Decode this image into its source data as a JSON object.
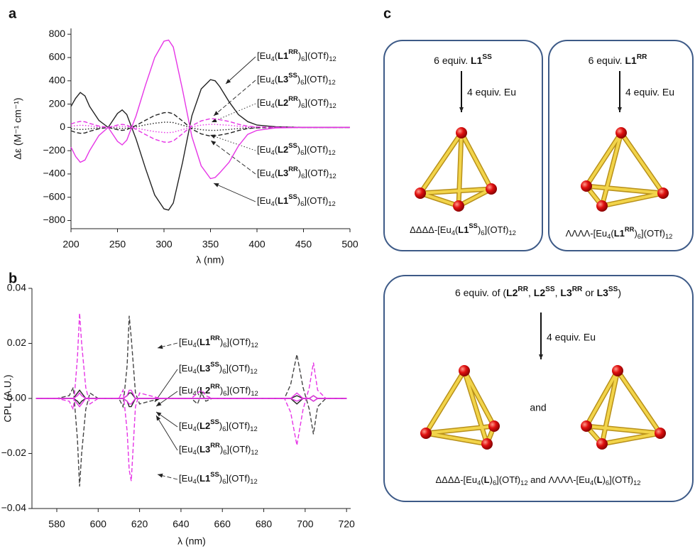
{
  "panel_labels": [
    "a",
    "b",
    "c"
  ],
  "chart_data": [
    {
      "type": "line",
      "x_label": "λ (nm)",
      "y_label": "Δε (M⁻¹ cm⁻¹)",
      "x": [
        200,
        205,
        210,
        215,
        220,
        230,
        240,
        250,
        255,
        260,
        270,
        280,
        290,
        300,
        305,
        310,
        320,
        330,
        340,
        350,
        355,
        360,
        370,
        380,
        390,
        400,
        420,
        450,
        500
      ],
      "xlim": [
        200,
        500
      ],
      "xticks": [
        200,
        250,
        300,
        350,
        400,
        450,
        500
      ],
      "ylim": [
        -870,
        850
      ],
      "yticks": [
        {
          "value": -800,
          "label": "−800"
        },
        {
          "value": -600,
          "label": "−600"
        },
        {
          "value": -400,
          "label": "−400"
        },
        {
          "value": -200,
          "label": "−200"
        },
        0,
        200,
        400,
        600,
        800
      ],
      "grid": false,
      "series": [
        {
          "name": "[Eu4(L1RR)6](OTf)12",
          "color": "#222222",
          "style": "solid",
          "values": [
            180,
            250,
            300,
            270,
            180,
            60,
            0,
            120,
            150,
            110,
            -100,
            -350,
            -580,
            -700,
            -710,
            -650,
            -300,
            100,
            330,
            410,
            400,
            350,
            220,
            110,
            50,
            20,
            5,
            0,
            0
          ]
        },
        {
          "name": "[Eu4(L3SS)6](OTf)12",
          "color": "#222222",
          "style": "dashed",
          "values": [
            -29,
            -43,
            -51,
            -48,
            -34,
            -12,
            0,
            -20,
            -26,
            -19,
            17,
            61,
            102,
            126,
            128,
            117,
            54,
            -14,
            -56,
            -75,
            -73,
            -66,
            -51,
            -27,
            -10,
            -4,
            -1,
            0,
            0
          ]
        },
        {
          "name": "[Eu4(L2RR)6](OTf)12",
          "color": "#222222",
          "style": "dotted",
          "values": [
            -10,
            -15,
            -18,
            -17,
            -12,
            -4,
            0,
            -7,
            -9,
            -7,
            6,
            22,
            36,
            44,
            45,
            41,
            19,
            -5,
            -20,
            -26,
            -26,
            -23,
            -18,
            -10,
            -4,
            -2,
            0,
            0,
            0
          ]
        },
        {
          "name": "[Eu4(L2SS)6](OTf)12",
          "color": "#e635e6",
          "style": "dotted",
          "values": [
            10,
            15,
            18,
            17,
            12,
            4,
            0,
            7,
            9,
            7,
            -6,
            -22,
            -36,
            -44,
            -45,
            -41,
            -19,
            5,
            20,
            26,
            26,
            23,
            18,
            10,
            4,
            2,
            0,
            0,
            0
          ]
        },
        {
          "name": "[Eu4(L3RR)6](OTf)12",
          "color": "#e635e6",
          "style": "dashed",
          "values": [
            29,
            43,
            51,
            48,
            34,
            12,
            0,
            20,
            26,
            19,
            -17,
            -61,
            -102,
            -126,
            -128,
            -117,
            -54,
            14,
            56,
            75,
            73,
            66,
            51,
            27,
            10,
            4,
            1,
            0,
            0
          ]
        },
        {
          "name": "[Eu4(L1SS)6](OTf)12",
          "color": "#e635e6",
          "style": "solid",
          "values": [
            -170,
            -250,
            -300,
            -280,
            -200,
            -70,
            0,
            -120,
            -150,
            -110,
            100,
            360,
            600,
            740,
            750,
            690,
            320,
            -80,
            -330,
            -440,
            -430,
            -390,
            -300,
            -160,
            -60,
            -25,
            -5,
            0,
            0
          ]
        }
      ]
    },
    {
      "type": "line",
      "x_label": "λ (nm)",
      "y_label": "CPL (A.U.)",
      "x": [
        570,
        580,
        586,
        588,
        590,
        591,
        592,
        594,
        596,
        600,
        610,
        612,
        614,
        615,
        616,
        618,
        620,
        630,
        645,
        648,
        650,
        652,
        655,
        670,
        690,
        693,
        696,
        699,
        702,
        704,
        706,
        710,
        720
      ],
      "xlim": [
        568,
        722
      ],
      "xticks": [
        580,
        600,
        620,
        640,
        660,
        680,
        700,
        720
      ],
      "ylim": [
        -0.04,
        0.04
      ],
      "yticks": [
        {
          "value": -0.04,
          "label": "−0.04"
        },
        {
          "value": -0.02,
          "label": "−0.02"
        },
        {
          "value": 0,
          "label": "0.00"
        },
        0.02,
        0.04
      ],
      "grid": false,
      "series": [
        {
          "name": "[Eu4(L1RR)6](OTf)12",
          "color": "#444444",
          "style": "dashed",
          "values": [
            0,
            0,
            0.001,
            0.004,
            -0.015,
            -0.032,
            -0.02,
            -0.004,
            0.002,
            0,
            0,
            -0.003,
            0.012,
            0.03,
            0.022,
            0.002,
            -0.002,
            0,
            0,
            -0.002,
            0.002,
            -0.001,
            0,
            0,
            0,
            0.005,
            0.016,
            0.004,
            -0.004,
            -0.013,
            -0.003,
            0,
            0
          ]
        },
        {
          "name": "[Eu4(L3SS)6](OTf)12",
          "color": "#222222",
          "style": "solid",
          "values": [
            0,
            0,
            0,
            0,
            0.002,
            0.003,
            0.002,
            0,
            0,
            0,
            0,
            0,
            -0.001,
            -0.003,
            -0.003,
            0,
            0,
            0,
            0,
            0,
            0,
            0,
            0,
            0,
            0,
            0,
            -0.002,
            0,
            0,
            0.001,
            0,
            0,
            0
          ]
        },
        {
          "name": "[Eu4(L2RR)6](OTf)12",
          "color": "#222222",
          "style": "solid",
          "values": [
            0,
            0,
            0,
            0,
            -0.001,
            -0.002,
            -0.001,
            0,
            0,
            0,
            0,
            0,
            0.001,
            0.002,
            0.002,
            0,
            0,
            0,
            0,
            0,
            0,
            0,
            0,
            0,
            0,
            0,
            0.001,
            0,
            0,
            -0.001,
            0,
            0,
            0
          ]
        },
        {
          "name": "[Eu4(L2SS)6](OTf)12",
          "color": "#e635e6",
          "style": "solid",
          "values": [
            0,
            0,
            0,
            0,
            0.001,
            0.002,
            0.001,
            0,
            0,
            0,
            0,
            0,
            -0.001,
            -0.002,
            -0.002,
            0,
            0,
            0,
            0,
            0,
            0,
            0,
            0,
            0,
            0,
            0,
            -0.001,
            0,
            0,
            0.001,
            0,
            0,
            0
          ]
        },
        {
          "name": "[Eu4(L3RR)6](OTf)12",
          "color": "#e635e6",
          "style": "solid",
          "values": [
            0,
            0,
            0,
            0,
            -0.002,
            -0.003,
            -0.002,
            0,
            0,
            0,
            0,
            0,
            0.001,
            0.003,
            0.003,
            0,
            0,
            0,
            0,
            0,
            0,
            0,
            0,
            0,
            0,
            0,
            0.002,
            0,
            0,
            -0.001,
            0,
            0,
            0
          ]
        },
        {
          "name": "[Eu4(L1SS)6](OTf)12",
          "color": "#e635e6",
          "style": "dashed",
          "values": [
            0,
            0,
            -0.001,
            -0.004,
            0.015,
            0.031,
            0.02,
            0.004,
            -0.002,
            0,
            0,
            0.003,
            -0.012,
            -0.026,
            -0.03,
            -0.003,
            0.002,
            0,
            0,
            0.002,
            0.003,
            0.001,
            0,
            0,
            0,
            -0.005,
            -0.017,
            -0.004,
            0.004,
            0.013,
            0.003,
            0,
            0
          ]
        }
      ]
    }
  ],
  "diagram": {
    "boxes": [
      {
        "reagent": "6 equiv. L1SS",
        "metal": "4 equiv. Eu",
        "product": "ΔΔΔΔ-[Eu4(L1SS)6](OTf)12"
      },
      {
        "reagent": "6 equiv. L1RR",
        "metal": "4 equiv. Eu",
        "product": "ΛΛΛΛ-[Eu4(L1RR)6](OTf)12"
      },
      {
        "reagent": "6 equiv. of (L2RR, L2SS, L3RR or L3SS)",
        "metal": "4 equiv. Eu",
        "connector": "and",
        "product": "ΔΔΔΔ-[Eu4(L)6](OTf)12 and ΛΛΛΛ-[Eu4(L)6](OTf)12"
      }
    ]
  }
}
